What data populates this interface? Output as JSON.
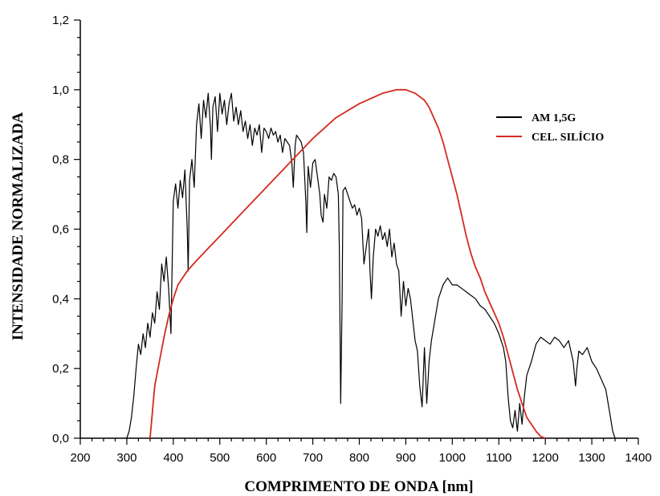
{
  "chart_data": {
    "type": "line",
    "title": "",
    "xlabel": "COMPRIMENTO DE ONDA [nm]",
    "ylabel": "INTENSIDADE NORMALIZADA",
    "xlim": [
      200,
      1400
    ],
    "ylim": [
      0,
      1.2
    ],
    "xticks": [
      200,
      300,
      400,
      500,
      600,
      700,
      800,
      900,
      1000,
      1100,
      1200,
      1300,
      1400
    ],
    "xtick_labels": [
      "200",
      "300",
      "400",
      "500",
      "600",
      "700",
      "800",
      "900",
      "1000",
      "1100",
      "1200",
      "1300",
      "1400"
    ],
    "yticks": [
      0,
      0.2,
      0.4,
      0.6,
      0.8,
      1.0,
      1.2
    ],
    "ytick_labels": [
      "0,0",
      "0,2",
      "0,4",
      "0,6",
      "0,8",
      "1,0",
      "1,2"
    ],
    "grid": false,
    "legend_position": "top-right",
    "series": [
      {
        "name": "AM 1,5G",
        "color": "#000000",
        "x": [
          300,
          305,
          310,
          315,
          320,
          325,
          330,
          335,
          340,
          345,
          350,
          355,
          360,
          365,
          370,
          375,
          380,
          385,
          390,
          395,
          400,
          405,
          410,
          415,
          420,
          425,
          430,
          432,
          435,
          440,
          445,
          450,
          455,
          460,
          465,
          470,
          475,
          480,
          482,
          485,
          490,
          495,
          500,
          505,
          510,
          515,
          520,
          525,
          530,
          535,
          540,
          545,
          550,
          555,
          560,
          565,
          570,
          575,
          580,
          585,
          590,
          595,
          600,
          605,
          610,
          615,
          620,
          625,
          630,
          635,
          640,
          645,
          650,
          655,
          658,
          662,
          665,
          670,
          675,
          680,
          685,
          687,
          690,
          695,
          700,
          705,
          710,
          715,
          718,
          722,
          725,
          730,
          735,
          740,
          745,
          750,
          755,
          757,
          760,
          763,
          765,
          770,
          775,
          780,
          785,
          790,
          795,
          800,
          805,
          810,
          815,
          820,
          823,
          826,
          830,
          835,
          840,
          845,
          850,
          855,
          860,
          865,
          870,
          875,
          880,
          885,
          890,
          895,
          900,
          905,
          910,
          915,
          920,
          925,
          930,
          935,
          940,
          945,
          950,
          955,
          960,
          965,
          970,
          975,
          980,
          985,
          990,
          995,
          1000,
          1010,
          1020,
          1030,
          1040,
          1050,
          1060,
          1070,
          1080,
          1090,
          1100,
          1105,
          1110,
          1115,
          1120,
          1125,
          1130,
          1135,
          1140,
          1145,
          1150,
          1155,
          1160,
          1165,
          1170,
          1180,
          1190,
          1200,
          1210,
          1220,
          1230,
          1240,
          1250,
          1260,
          1265,
          1268,
          1272,
          1280,
          1290,
          1300,
          1310,
          1320,
          1330,
          1335,
          1340,
          1345,
          1350
        ],
        "y": [
          0.0,
          0.02,
          0.06,
          0.12,
          0.2,
          0.27,
          0.24,
          0.3,
          0.26,
          0.33,
          0.29,
          0.36,
          0.33,
          0.42,
          0.37,
          0.5,
          0.45,
          0.52,
          0.43,
          0.3,
          0.68,
          0.73,
          0.66,
          0.74,
          0.69,
          0.77,
          0.6,
          0.48,
          0.74,
          0.8,
          0.72,
          0.9,
          0.96,
          0.86,
          0.97,
          0.92,
          0.99,
          0.89,
          0.8,
          0.95,
          0.98,
          0.88,
          0.99,
          0.93,
          0.97,
          0.9,
          0.96,
          0.99,
          0.91,
          0.95,
          0.9,
          0.94,
          0.88,
          0.91,
          0.86,
          0.9,
          0.84,
          0.89,
          0.87,
          0.9,
          0.82,
          0.89,
          0.88,
          0.86,
          0.89,
          0.87,
          0.88,
          0.85,
          0.87,
          0.82,
          0.86,
          0.85,
          0.84,
          0.79,
          0.72,
          0.84,
          0.87,
          0.86,
          0.85,
          0.82,
          0.68,
          0.59,
          0.78,
          0.72,
          0.79,
          0.8,
          0.75,
          0.7,
          0.64,
          0.62,
          0.7,
          0.66,
          0.75,
          0.74,
          0.76,
          0.75,
          0.7,
          0.55,
          0.1,
          0.4,
          0.71,
          0.72,
          0.7,
          0.68,
          0.66,
          0.67,
          0.64,
          0.66,
          0.63,
          0.5,
          0.55,
          0.6,
          0.48,
          0.4,
          0.52,
          0.6,
          0.58,
          0.61,
          0.57,
          0.59,
          0.55,
          0.6,
          0.52,
          0.56,
          0.5,
          0.48,
          0.35,
          0.45,
          0.38,
          0.43,
          0.4,
          0.34,
          0.28,
          0.25,
          0.15,
          0.09,
          0.26,
          0.1,
          0.22,
          0.28,
          0.32,
          0.36,
          0.4,
          0.42,
          0.44,
          0.45,
          0.46,
          0.45,
          0.44,
          0.44,
          0.43,
          0.42,
          0.41,
          0.4,
          0.38,
          0.37,
          0.35,
          0.33,
          0.3,
          0.28,
          0.26,
          0.22,
          0.12,
          0.05,
          0.03,
          0.08,
          0.02,
          0.1,
          0.04,
          0.12,
          0.18,
          0.2,
          0.22,
          0.27,
          0.29,
          0.28,
          0.27,
          0.29,
          0.28,
          0.26,
          0.28,
          0.22,
          0.15,
          0.2,
          0.25,
          0.24,
          0.26,
          0.22,
          0.2,
          0.17,
          0.14,
          0.1,
          0.06,
          0.02,
          0.0
        ]
      },
      {
        "name": "CEL. SILÍCIO",
        "color": "#d42a20",
        "x": [
          350,
          360,
          370,
          380,
          390,
          400,
          410,
          420,
          430,
          450,
          500,
          550,
          600,
          650,
          700,
          750,
          800,
          850,
          880,
          900,
          920,
          940,
          950,
          960,
          970,
          980,
          990,
          1000,
          1010,
          1020,
          1030,
          1040,
          1050,
          1060,
          1070,
          1080,
          1090,
          1100,
          1110,
          1120,
          1130,
          1140,
          1150,
          1160,
          1170,
          1180,
          1190,
          1200
        ],
        "y": [
          0.0,
          0.15,
          0.22,
          0.29,
          0.35,
          0.4,
          0.44,
          0.46,
          0.48,
          0.51,
          0.58,
          0.65,
          0.72,
          0.79,
          0.86,
          0.92,
          0.96,
          0.99,
          1.0,
          1.0,
          0.99,
          0.97,
          0.95,
          0.92,
          0.89,
          0.85,
          0.8,
          0.75,
          0.7,
          0.64,
          0.58,
          0.53,
          0.49,
          0.46,
          0.42,
          0.39,
          0.36,
          0.33,
          0.29,
          0.24,
          0.19,
          0.14,
          0.1,
          0.06,
          0.04,
          0.02,
          0.005,
          0.0
        ]
      }
    ]
  }
}
